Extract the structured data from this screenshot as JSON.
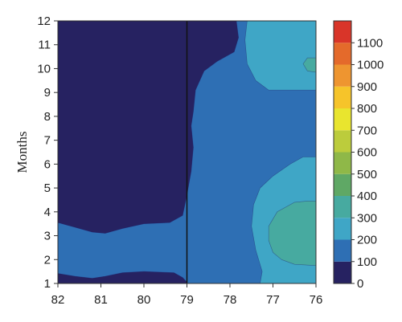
{
  "chart_data": {
    "type": "heatmap",
    "subtype": "filled-contour",
    "xlabel": "",
    "ylabel": "Months",
    "x_ticks": [
      82,
      81,
      80,
      79,
      78,
      77,
      76
    ],
    "y_ticks": [
      1,
      2,
      3,
      4,
      5,
      6,
      7,
      8,
      9,
      10,
      11,
      12
    ],
    "xlim": [
      82,
      76
    ],
    "ylim": [
      1,
      12
    ],
    "x_reversed": true,
    "vertical_line_x": 79,
    "colorbar": {
      "ticks": [
        0,
        100,
        200,
        300,
        400,
        500,
        600,
        700,
        800,
        900,
        1000,
        1100
      ],
      "range": [
        0,
        1200
      ],
      "colors": [
        "#262261",
        "#2e6fb4",
        "#3fa6c6",
        "#47aaa0",
        "#5fa865",
        "#8fb848",
        "#bccc3c",
        "#e9e52e",
        "#f6c42a",
        "#ee9530",
        "#e46a2b",
        "#d93529"
      ]
    },
    "levels": [
      {
        "range": [
          0,
          100
        ],
        "color": "#262261",
        "regions": [
          [
            [
              82,
              12
            ],
            [
              82,
              3.55
            ],
            [
              81.6,
              3.35
            ],
            [
              81.2,
              3.15
            ],
            [
              80.9,
              3.1
            ],
            [
              80.5,
              3.3
            ],
            [
              80,
              3.5
            ],
            [
              79.4,
              3.55
            ],
            [
              79.1,
              3.85
            ],
            [
              79,
              4.7
            ],
            [
              78.9,
              5.7
            ],
            [
              78.85,
              6.7
            ],
            [
              78.9,
              7.6
            ],
            [
              78.85,
              8.2
            ],
            [
              78.8,
              9.1
            ],
            [
              78.6,
              9.9
            ],
            [
              78.3,
              10.3
            ],
            [
              77.9,
              10.7
            ],
            [
              77.8,
              11.3
            ],
            [
              77.85,
              12
            ]
          ],
          [
            [
              82,
              1.42
            ],
            [
              81.6,
              1.3
            ],
            [
              81.2,
              1.22
            ],
            [
              80.9,
              1.3
            ],
            [
              80.5,
              1.45
            ],
            [
              80,
              1.5
            ],
            [
              79.3,
              1.45
            ],
            [
              79.1,
              1.25
            ],
            [
              79,
              1.05
            ],
            [
              79,
              1
            ],
            [
              82,
              1
            ]
          ]
        ]
      },
      {
        "range": [
          200,
          300
        ],
        "color": "#3fa6c6",
        "regions": [
          [
            [
              77.6,
              12
            ],
            [
              77.65,
              11.2
            ],
            [
              77.6,
              10.2
            ],
            [
              77.4,
              9.5
            ],
            [
              77.1,
              9.1
            ],
            [
              76.6,
              9.1
            ],
            [
              76,
              9.1
            ],
            [
              76,
              12
            ]
          ],
          [
            [
              77.3,
              1
            ],
            [
              77.25,
              1.5
            ],
            [
              77.4,
              2.4
            ],
            [
              77.5,
              3.4
            ],
            [
              77.45,
              4.3
            ],
            [
              77.3,
              5
            ],
            [
              77,
              5.5
            ],
            [
              76.6,
              6
            ],
            [
              76.3,
              6.3
            ],
            [
              76,
              6.3
            ],
            [
              76,
              1
            ]
          ]
        ]
      },
      {
        "range": [
          300,
          400
        ],
        "color": "#47aaa0",
        "regions": [
          [
            [
              77,
              2.3
            ],
            [
              77.1,
              2.8
            ],
            [
              77.1,
              3.4
            ],
            [
              76.9,
              4
            ],
            [
              76.5,
              4.4
            ],
            [
              76.2,
              4.45
            ],
            [
              76,
              4.45
            ],
            [
              76,
              1.75
            ],
            [
              76.5,
              1.8
            ],
            [
              76.8,
              2
            ]
          ],
          [
            [
              76.3,
              10.2
            ],
            [
              76.2,
              9.9
            ],
            [
              76,
              9.85
            ],
            [
              76,
              10.45
            ],
            [
              76.2,
              10.45
            ]
          ]
        ]
      }
    ]
  }
}
